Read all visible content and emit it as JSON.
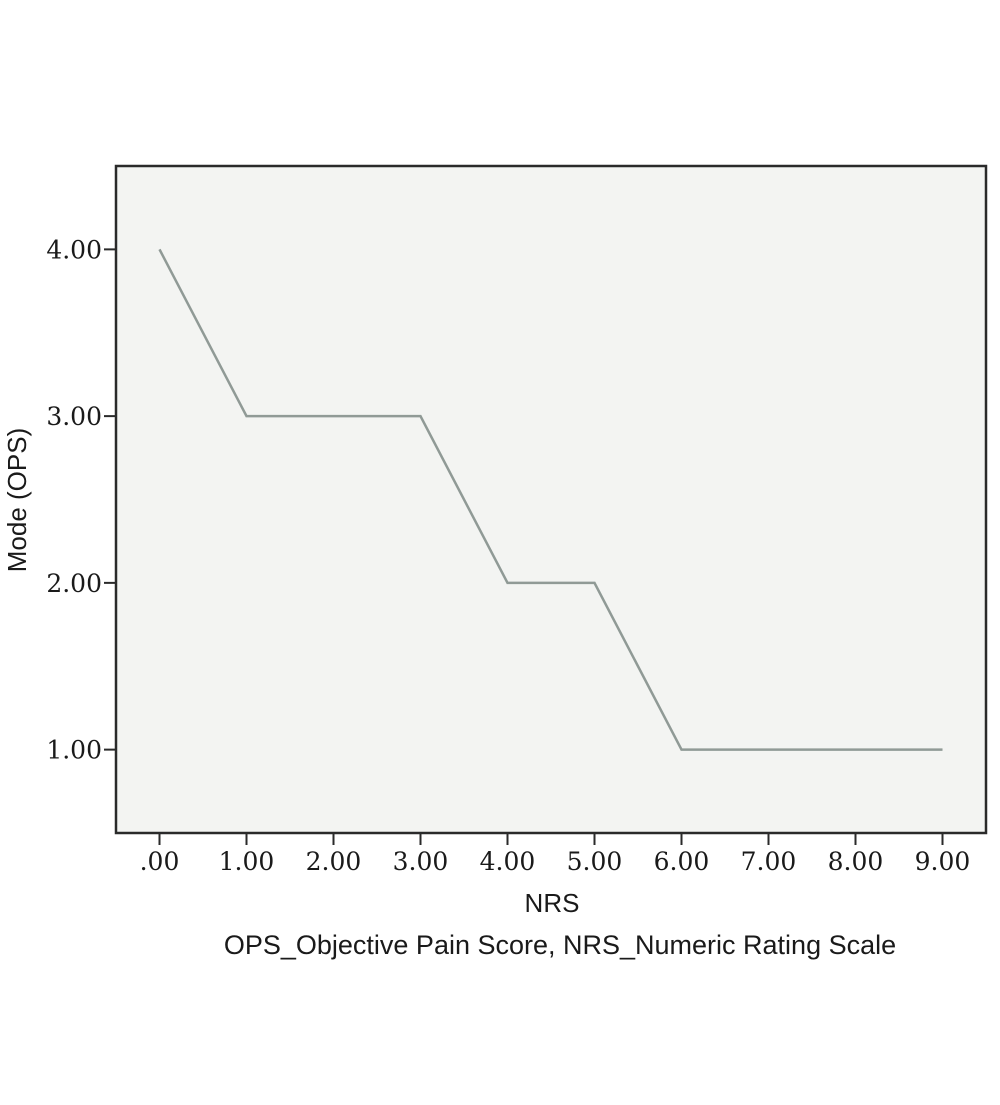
{
  "chart_data": {
    "type": "line",
    "title": "",
    "xlabel": "NRS",
    "ylabel": "Mode (OPS)",
    "x": [
      0,
      1,
      2,
      3,
      4,
      5,
      6,
      7,
      8,
      9
    ],
    "x_tick_labels": [
      ".00",
      "1.00",
      "2.00",
      "3.00",
      "4.00",
      "5.00",
      "6.00",
      "7.00",
      "8.00",
      "9.00"
    ],
    "y_ticks": [
      1,
      2,
      3,
      4
    ],
    "y_tick_labels": [
      "1.00",
      "2.00",
      "3.00",
      "4.00"
    ],
    "series": [
      {
        "values": [
          4,
          3,
          3,
          3,
          2,
          2,
          1,
          1,
          1,
          1
        ]
      }
    ],
    "xlim": [
      -0.5,
      9.5
    ],
    "ylim": [
      0.5,
      4.5
    ],
    "grid": false,
    "colors": {
      "plot_background": "#f3f4f2",
      "line": "#909a96",
      "axis": "#2a2a2a"
    }
  },
  "caption": "OPS_Objective Pain Score, NRS_Numeric Rating Scale"
}
